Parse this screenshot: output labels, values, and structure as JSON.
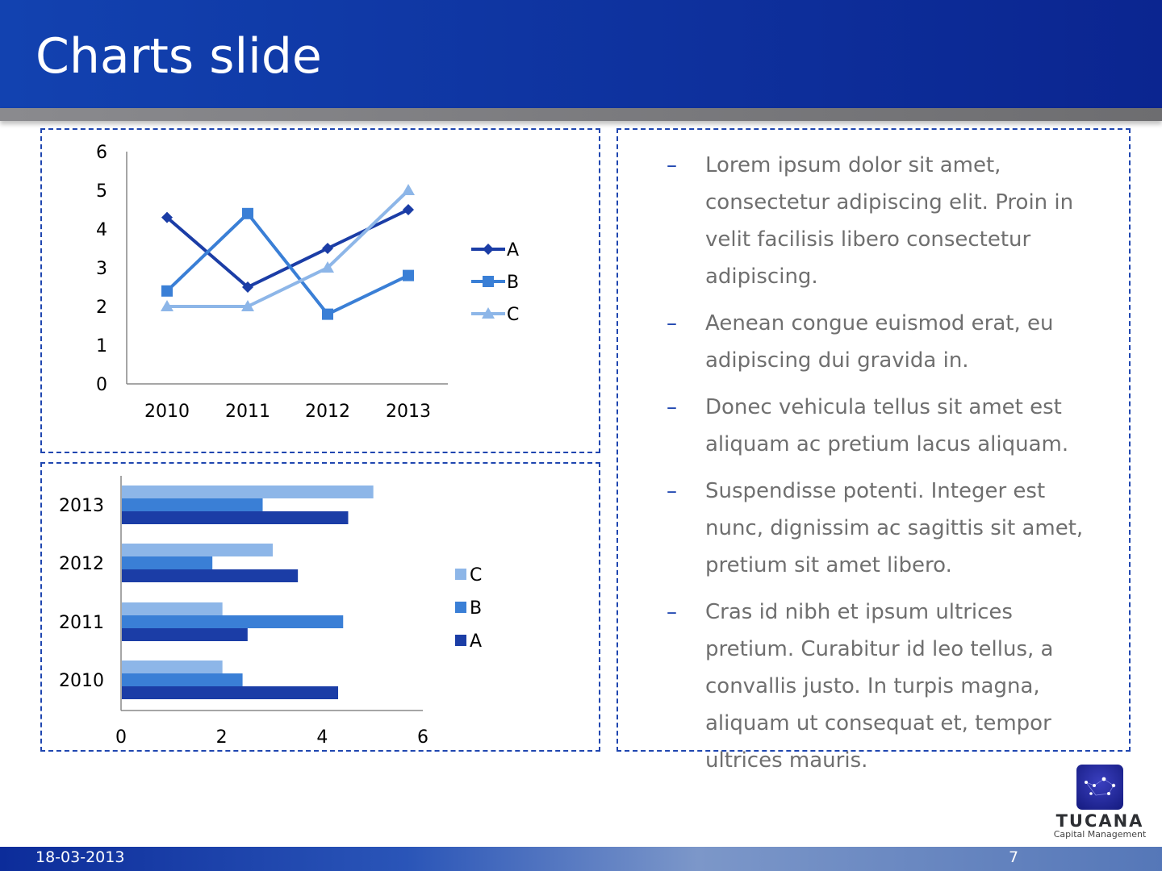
{
  "slide": {
    "title": "Charts slide",
    "date": "18-03-2013",
    "page_number": "7"
  },
  "logo": {
    "name": "TUCANA",
    "subtitle": "Capital Management"
  },
  "bullets": [
    "Lorem ipsum dolor sit amet, consectetur adipiscing elit. Proin in velit facilisis libero consectetur adipiscing.",
    "Aenean congue euismod erat, eu adipiscing dui gravida in.",
    "Donec vehicula tellus sit amet est aliquam ac pretium lacus aliquam.",
    "Suspendisse potenti. Integer est nunc, dignissim ac sagittis sit amet, pretium sit amet libero.",
    "Cras id nibh et ipsum ultrices pretium. Curabitur id leo tellus, a convallis justo. In turpis magna, aliquam ut consequat et, tempor ultrices mauris."
  ],
  "bullet_marker": "–",
  "colors": {
    "A": "#1b3da6",
    "B": "#3a7fd6",
    "C": "#8db6e8"
  },
  "chart_data": [
    {
      "type": "line",
      "categories": [
        "2010",
        "2011",
        "2012",
        "2013"
      ],
      "series": [
        {
          "name": "A",
          "values": [
            4.3,
            2.5,
            3.5,
            4.5
          ],
          "marker": "diamond"
        },
        {
          "name": "B",
          "values": [
            2.4,
            4.4,
            1.8,
            2.8
          ],
          "marker": "square"
        },
        {
          "name": "C",
          "values": [
            2,
            2,
            3,
            5
          ],
          "marker": "triangle"
        }
      ],
      "ylim": [
        0,
        6
      ],
      "yticks": [
        "0",
        "1",
        "2",
        "3",
        "4",
        "5",
        "6"
      ],
      "legend": "right",
      "grid": false
    },
    {
      "type": "bar",
      "orientation": "horizontal",
      "categories": [
        "2010",
        "2011",
        "2012",
        "2013"
      ],
      "series": [
        {
          "name": "A",
          "values": [
            4.3,
            2.5,
            3.5,
            4.5
          ]
        },
        {
          "name": "B",
          "values": [
            2.4,
            4.4,
            1.8,
            2.8
          ]
        },
        {
          "name": "C",
          "values": [
            2,
            2,
            3,
            5
          ]
        }
      ],
      "legend_order": [
        "C",
        "B",
        "A"
      ],
      "xlim": [
        0,
        6
      ],
      "xticks": [
        "0",
        "2",
        "4",
        "6"
      ],
      "legend": "right",
      "grid": false
    }
  ]
}
